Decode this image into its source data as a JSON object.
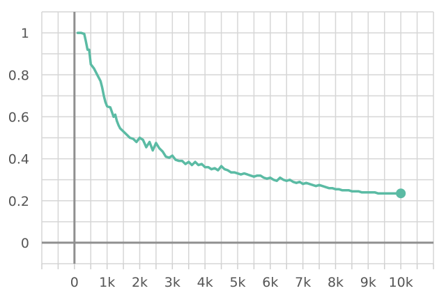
{
  "chart_data": {
    "type": "line",
    "title": "",
    "xlabel": "",
    "ylabel": "",
    "xlim": [
      -1000,
      11000
    ],
    "ylim": [
      -0.1,
      1.1
    ],
    "grid": true,
    "legend": "none",
    "x_ticks": [
      {
        "value": 0,
        "label": "0"
      },
      {
        "value": 1000,
        "label": "1k"
      },
      {
        "value": 2000,
        "label": "2k"
      },
      {
        "value": 3000,
        "label": "3k"
      },
      {
        "value": 4000,
        "label": "4k"
      },
      {
        "value": 5000,
        "label": "5k"
      },
      {
        "value": 6000,
        "label": "6k"
      },
      {
        "value": 7000,
        "label": "7k"
      },
      {
        "value": 8000,
        "label": "8k"
      },
      {
        "value": 9000,
        "label": "9k"
      },
      {
        "value": 10000,
        "label": "10k"
      }
    ],
    "y_ticks": [
      {
        "value": 0,
        "label": "0"
      },
      {
        "value": 0.2,
        "label": "0.2"
      },
      {
        "value": 0.4,
        "label": "0.4"
      },
      {
        "value": 0.6,
        "label": "0.6"
      },
      {
        "value": 0.8,
        "label": "0.8"
      },
      {
        "value": 1,
        "label": "1"
      }
    ],
    "series": [
      {
        "color": "#5bbba4",
        "x": [
          100,
          200,
          300,
          350,
          400,
          450,
          500,
          600,
          700,
          800,
          850,
          900,
          950,
          1000,
          1100,
          1200,
          1250,
          1300,
          1350,
          1400,
          1500,
          1600,
          1700,
          1800,
          1900,
          2000,
          2100,
          2200,
          2300,
          2400,
          2500,
          2600,
          2700,
          2800,
          2900,
          3000,
          3100,
          3200,
          3300,
          3400,
          3500,
          3600,
          3700,
          3800,
          3900,
          4000,
          4100,
          4200,
          4300,
          4400,
          4500,
          4600,
          4700,
          4800,
          4900,
          5000,
          5100,
          5200,
          5300,
          5400,
          5500,
          5600,
          5700,
          5800,
          5900,
          6000,
          6100,
          6200,
          6300,
          6400,
          6500,
          6600,
          6700,
          6800,
          6900,
          7000,
          7100,
          7200,
          7300,
          7400,
          7500,
          7600,
          7700,
          7800,
          7900,
          8000,
          8100,
          8200,
          8300,
          8400,
          8500,
          8600,
          8700,
          8800,
          8900,
          9000,
          9100,
          9200,
          9300,
          9400,
          9500,
          9600,
          9700,
          9800,
          9900,
          10000
        ],
        "y": [
          1.0,
          1.0,
          0.995,
          0.96,
          0.92,
          0.92,
          0.85,
          0.83,
          0.8,
          0.77,
          0.74,
          0.7,
          0.67,
          0.65,
          0.645,
          0.6,
          0.61,
          0.58,
          0.56,
          0.545,
          0.53,
          0.515,
          0.5,
          0.495,
          0.48,
          0.5,
          0.49,
          0.455,
          0.48,
          0.44,
          0.475,
          0.45,
          0.435,
          0.41,
          0.405,
          0.415,
          0.395,
          0.39,
          0.39,
          0.375,
          0.385,
          0.37,
          0.385,
          0.37,
          0.375,
          0.36,
          0.36,
          0.35,
          0.355,
          0.345,
          0.365,
          0.35,
          0.345,
          0.335,
          0.335,
          0.33,
          0.325,
          0.33,
          0.325,
          0.32,
          0.315,
          0.32,
          0.32,
          0.31,
          0.305,
          0.31,
          0.3,
          0.295,
          0.31,
          0.3,
          0.295,
          0.3,
          0.29,
          0.285,
          0.29,
          0.28,
          0.285,
          0.28,
          0.275,
          0.27,
          0.275,
          0.27,
          0.265,
          0.26,
          0.26,
          0.255,
          0.255,
          0.25,
          0.25,
          0.25,
          0.245,
          0.245,
          0.245,
          0.24,
          0.24,
          0.24,
          0.24,
          0.24,
          0.235,
          0.235,
          0.235,
          0.235,
          0.235,
          0.235,
          0.235,
          0.235
        ]
      }
    ]
  }
}
